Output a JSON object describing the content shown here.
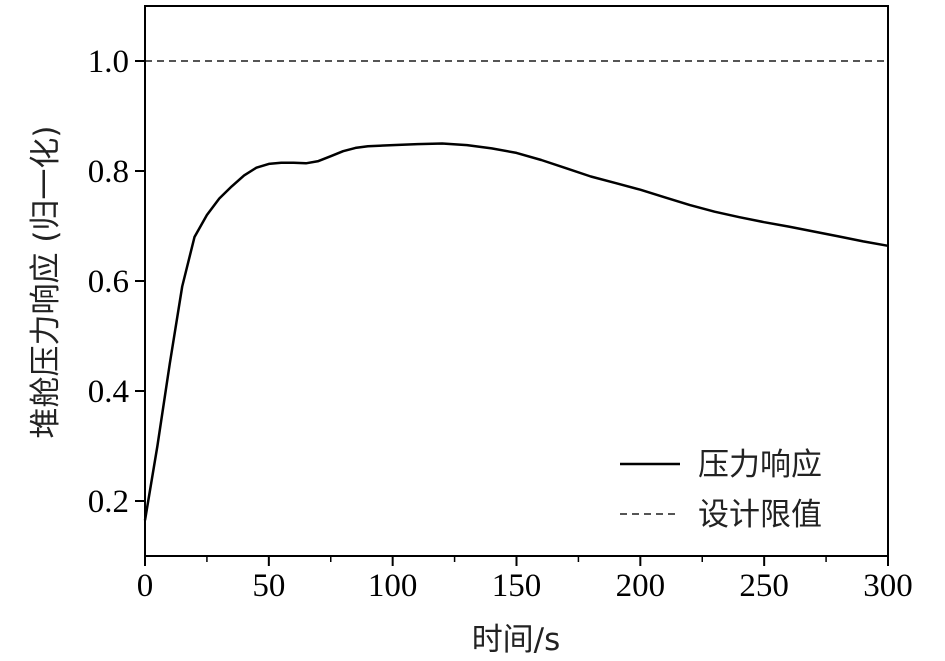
{
  "chart_data": {
    "type": "line",
    "xlabel": "时间/s",
    "ylabel": "堆舱压力响应 (归一化)",
    "xlim": [
      0,
      300
    ],
    "ylim": [
      0.1,
      1.1
    ],
    "xticks": [
      "0",
      "50",
      "100",
      "150",
      "200",
      "250",
      "300"
    ],
    "yticks": [
      "0.2",
      "0.4",
      "0.6",
      "0.8",
      "1.0"
    ],
    "legend_position": "bottom-right",
    "series": [
      {
        "name": "压力响应",
        "style": "solid",
        "color": "#000000",
        "x": [
          0,
          5,
          10,
          15,
          20,
          25,
          30,
          35,
          40,
          45,
          50,
          55,
          60,
          65,
          70,
          75,
          80,
          85,
          90,
          100,
          110,
          120,
          130,
          140,
          150,
          160,
          170,
          180,
          190,
          200,
          210,
          220,
          230,
          240,
          250,
          260,
          270,
          280,
          290,
          300
        ],
        "y": [
          0.165,
          0.3,
          0.45,
          0.59,
          0.68,
          0.72,
          0.75,
          0.772,
          0.792,
          0.806,
          0.813,
          0.815,
          0.815,
          0.814,
          0.818,
          0.827,
          0.836,
          0.842,
          0.845,
          0.847,
          0.849,
          0.85,
          0.847,
          0.841,
          0.833,
          0.82,
          0.805,
          0.79,
          0.778,
          0.766,
          0.752,
          0.738,
          0.726,
          0.716,
          0.707,
          0.699,
          0.69,
          0.681,
          0.672,
          0.664
        ]
      },
      {
        "name": "设计限值",
        "style": "dashed",
        "color": "#555555",
        "x": [
          0,
          300
        ],
        "y": [
          1.0,
          1.0
        ]
      }
    ]
  }
}
